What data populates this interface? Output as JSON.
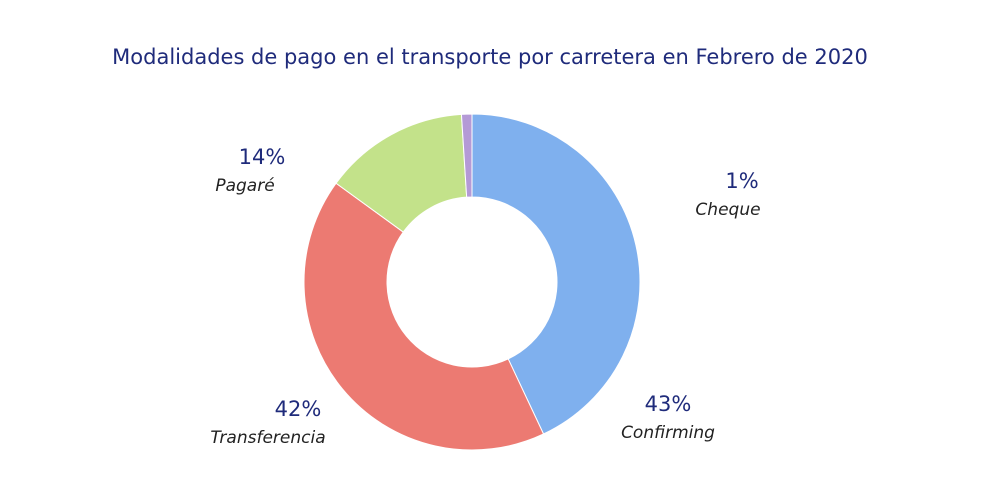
{
  "chart_data": {
    "type": "donut",
    "title": "Modalidades de pago en el transporte por carretera en Febrero de 2020",
    "categories": [
      "Confirming",
      "Transferencia",
      "Pagaré",
      "Cheque"
    ],
    "values": [
      43,
      42,
      14,
      1
    ],
    "value_labels": [
      "43%",
      "42%",
      "14%",
      "1%"
    ],
    "colors": [
      "#7fb0ee",
      "#ec7a72",
      "#c3e28a",
      "#b49ad6"
    ]
  }
}
